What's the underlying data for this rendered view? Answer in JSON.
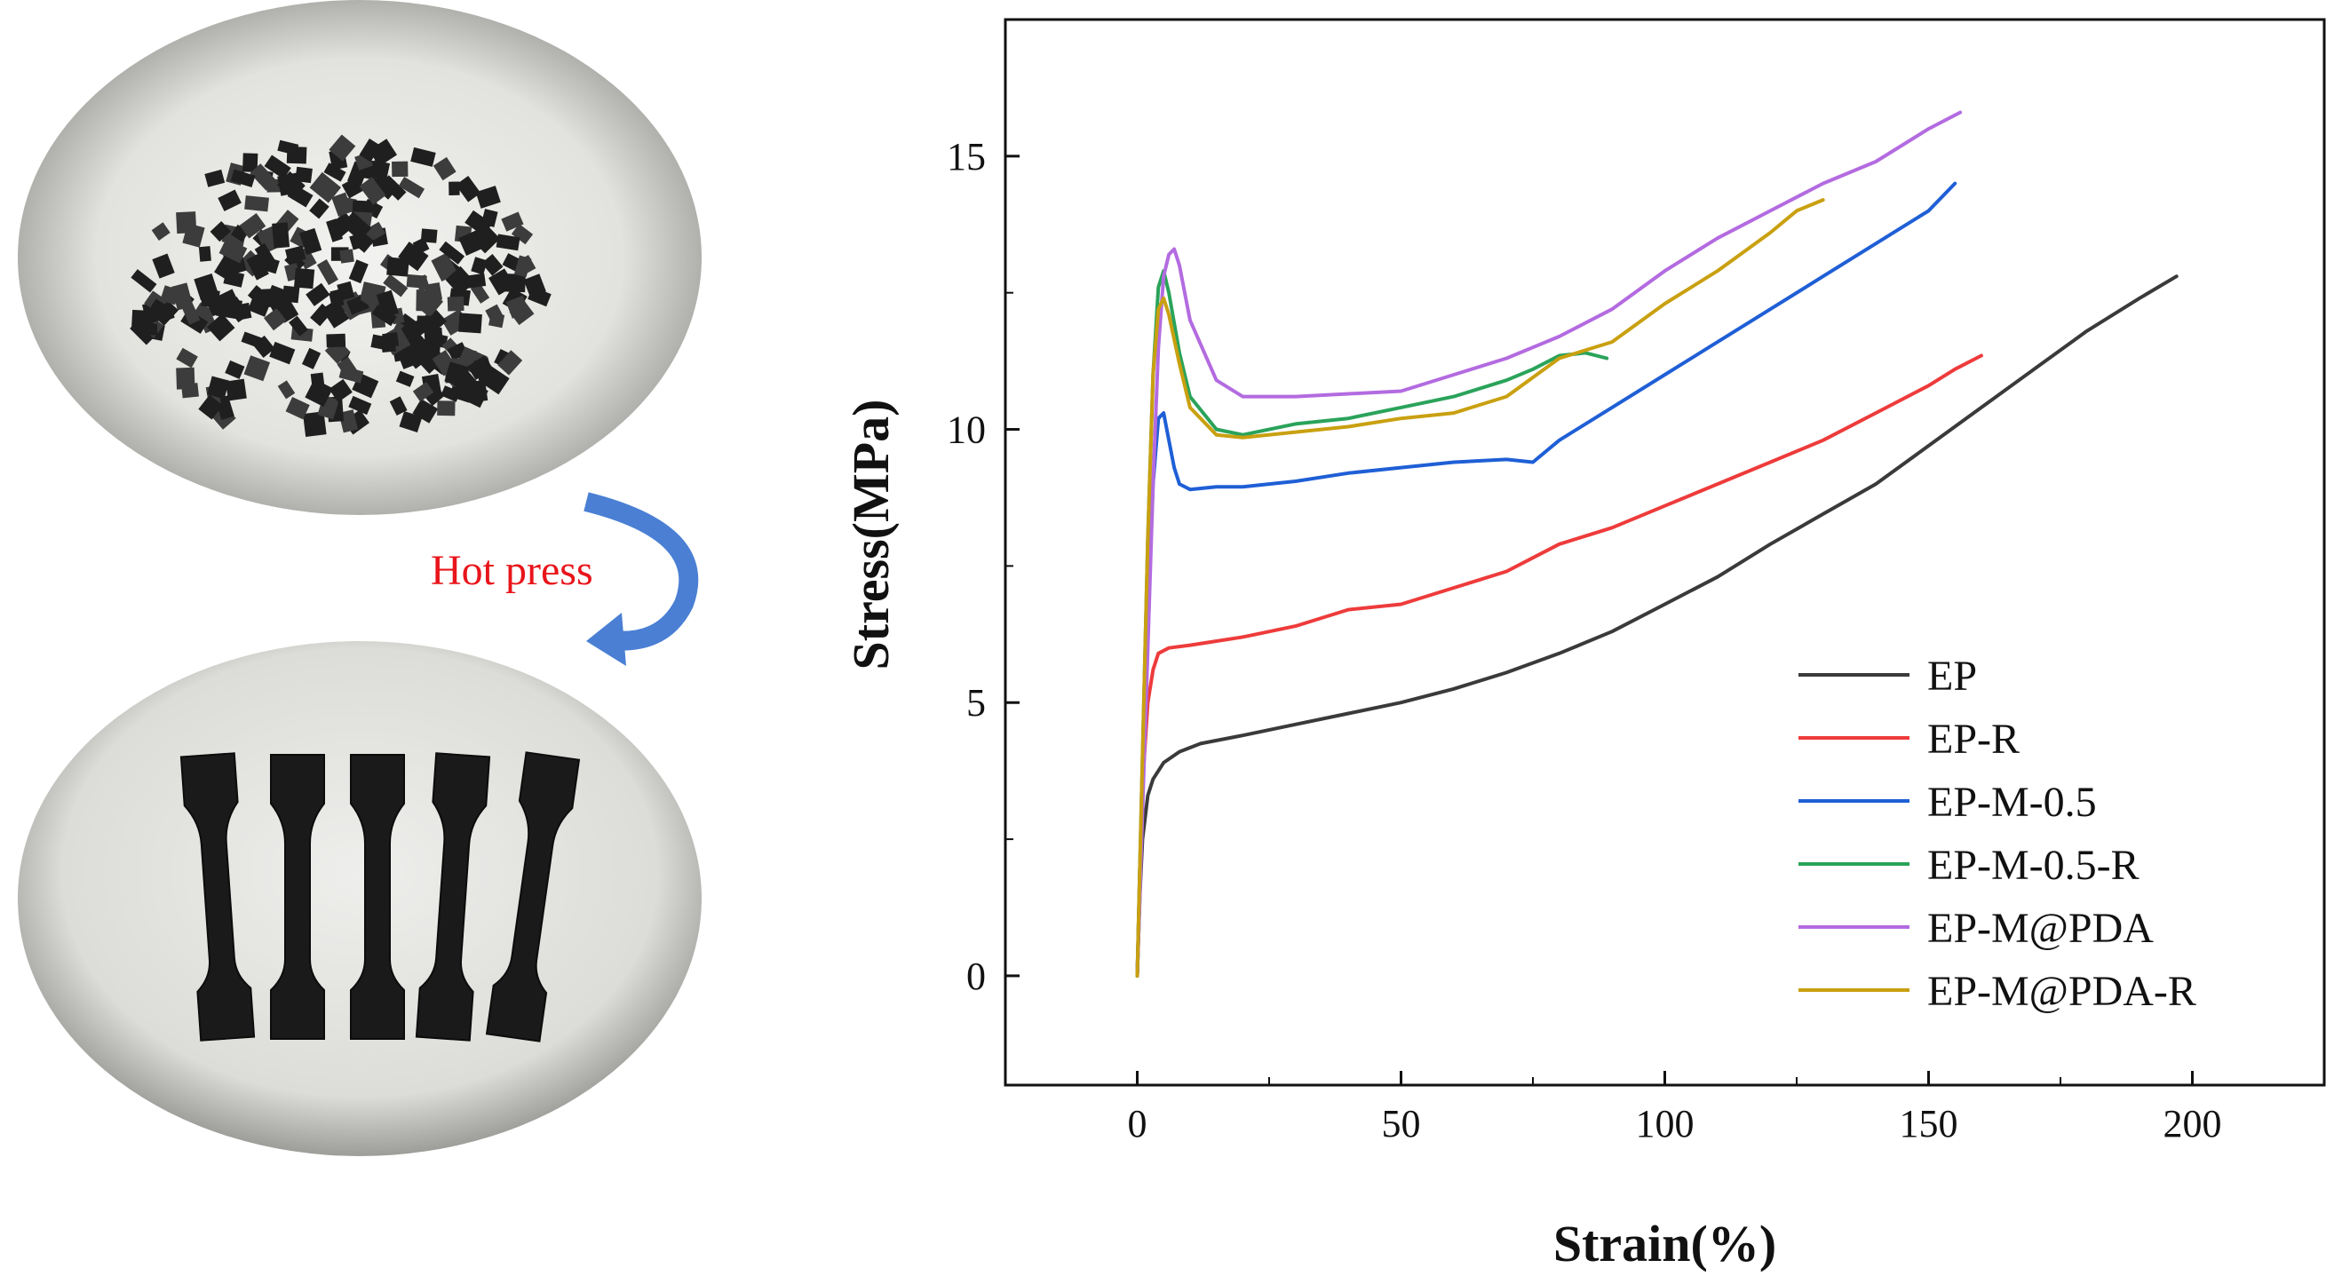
{
  "colors": {
    "EP": "#3a3a3a",
    "EP-R": "#ee3b3b",
    "EP-M-0.5": "#1f5fd6",
    "EP-M-0.5-R": "#2aa35a",
    "EP-M@PDA": "#b36be0",
    "EP-M@PDA-R": "#c9a010",
    "arrow": "#4a7fd4",
    "process_text": "#e8151b"
  },
  "process": {
    "label": "Hot press"
  },
  "photos": {
    "top": "granules-photo",
    "bottom": "dumbbell-specimens-photo"
  },
  "chart_data": {
    "type": "line",
    "title": "",
    "xlabel": "Strain(%)",
    "ylabel": "Stress(MPa)",
    "xlim": [
      -25,
      225
    ],
    "ylim": [
      -2,
      17.5
    ],
    "xticks": [
      0,
      50,
      100,
      150,
      200
    ],
    "yticks": [
      0,
      5,
      10,
      15
    ],
    "legend_position": "lower-right",
    "series": [
      {
        "name": "EP",
        "x": [
          0,
          0.5,
          1,
          2,
          3,
          5,
          8,
          12,
          20,
          30,
          40,
          50,
          60,
          70,
          80,
          90,
          100,
          110,
          120,
          130,
          140,
          150,
          160,
          170,
          180,
          190,
          197
        ],
        "y": [
          0,
          1.5,
          2.5,
          3.3,
          3.6,
          3.9,
          4.1,
          4.25,
          4.4,
          4.6,
          4.8,
          5.0,
          5.25,
          5.55,
          5.9,
          6.3,
          6.8,
          7.3,
          7.9,
          8.45,
          9.0,
          9.7,
          10.4,
          11.1,
          11.8,
          12.4,
          12.8
        ]
      },
      {
        "name": "EP-R",
        "x": [
          0,
          0.5,
          1,
          2,
          3,
          4,
          6,
          10,
          20,
          30,
          40,
          50,
          60,
          70,
          80,
          90,
          100,
          110,
          120,
          130,
          140,
          150,
          155,
          160
        ],
        "y": [
          0,
          2.0,
          3.5,
          5.0,
          5.6,
          5.9,
          6.0,
          6.05,
          6.2,
          6.4,
          6.7,
          6.8,
          7.1,
          7.4,
          7.9,
          8.2,
          8.6,
          9.0,
          9.4,
          9.8,
          10.3,
          10.8,
          11.1,
          11.35
        ]
      },
      {
        "name": "EP-M-0.5",
        "x": [
          0,
          1,
          2,
          3,
          4,
          5,
          6,
          7,
          8,
          10,
          15,
          20,
          30,
          40,
          50,
          60,
          70,
          75,
          80,
          90,
          100,
          110,
          120,
          130,
          140,
          150,
          155
        ],
        "y": [
          0,
          3.5,
          6.5,
          9.0,
          10.2,
          10.3,
          9.8,
          9.3,
          9.0,
          8.9,
          8.95,
          8.95,
          9.05,
          9.2,
          9.3,
          9.4,
          9.45,
          9.4,
          9.8,
          10.4,
          11.0,
          11.6,
          12.2,
          12.8,
          13.4,
          14.0,
          14.5
        ]
      },
      {
        "name": "EP-M-0.5-R",
        "x": [
          0,
          1,
          2,
          3,
          4,
          5,
          6,
          8,
          10,
          15,
          20,
          30,
          40,
          50,
          60,
          70,
          75,
          80,
          85,
          89
        ],
        "y": [
          0,
          4,
          8,
          11,
          12.6,
          12.9,
          12.5,
          11.4,
          10.6,
          10.0,
          9.9,
          10.1,
          10.2,
          10.4,
          10.6,
          10.9,
          11.1,
          11.35,
          11.4,
          11.3
        ]
      },
      {
        "name": "EP-M@PDA",
        "x": [
          0,
          1,
          2,
          3,
          4,
          5,
          6,
          7,
          8,
          10,
          15,
          20,
          30,
          40,
          50,
          60,
          70,
          80,
          90,
          100,
          110,
          120,
          130,
          140,
          150,
          156
        ],
        "y": [
          0,
          3,
          6,
          9,
          11.5,
          12.8,
          13.2,
          13.3,
          13.0,
          12.0,
          10.9,
          10.6,
          10.6,
          10.65,
          10.7,
          11.0,
          11.3,
          11.7,
          12.2,
          12.9,
          13.5,
          14.0,
          14.5,
          14.9,
          15.5,
          15.8
        ]
      },
      {
        "name": "EP-M@PDA-R",
        "x": [
          0,
          1,
          2,
          3,
          4,
          5,
          6,
          8,
          10,
          15,
          20,
          30,
          40,
          50,
          60,
          70,
          80,
          90,
          100,
          110,
          120,
          125,
          130
        ],
        "y": [
          0,
          4,
          8,
          11,
          12.2,
          12.4,
          12.1,
          11.2,
          10.4,
          9.9,
          9.85,
          9.95,
          10.05,
          10.2,
          10.3,
          10.6,
          11.3,
          11.6,
          12.3,
          12.9,
          13.6,
          14.0,
          14.2
        ]
      }
    ]
  }
}
